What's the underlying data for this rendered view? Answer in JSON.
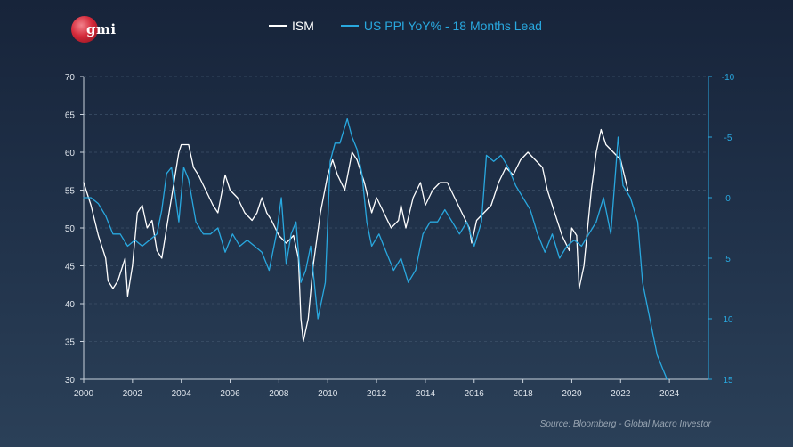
{
  "logo": {
    "text": "gmi"
  },
  "legend": [
    {
      "label": "ISM",
      "color": "#ffffff"
    },
    {
      "label": "US PPI YoY% - 18 Months Lead",
      "color": "#29a8df"
    }
  ],
  "source": "Source: Bloomberg - Global Macro Investor",
  "chart_data": {
    "type": "line",
    "title": "",
    "xlabel": "",
    "ylabel": "",
    "xlim": [
      2000,
      2025.6
    ],
    "x_ticks": [
      "2000",
      "2002",
      "2004",
      "2006",
      "2008",
      "2010",
      "2012",
      "2014",
      "2016",
      "2018",
      "2020",
      "2022",
      "2024"
    ],
    "y_left": {
      "min": 30,
      "max": 70,
      "ticks": [
        "30",
        "35",
        "40",
        "45",
        "50",
        "55",
        "60",
        "65",
        "70"
      ]
    },
    "y_right": {
      "min": -10,
      "max": 15,
      "inverted": true,
      "ticks": [
        "-10",
        "-5",
        "0",
        "5",
        "10",
        "15"
      ]
    },
    "grid": "horizontal dashed",
    "series": [
      {
        "name": "ISM",
        "axis": "left",
        "color": "#ffffff",
        "x": [
          2000.0,
          2000.3,
          2000.6,
          2000.9,
          2001.0,
          2001.2,
          2001.4,
          2001.7,
          2001.8,
          2002.0,
          2002.2,
          2002.4,
          2002.6,
          2002.8,
          2003.0,
          2003.2,
          2003.4,
          2003.6,
          2003.9,
          2004.0,
          2004.3,
          2004.5,
          2004.7,
          2005.0,
          2005.3,
          2005.5,
          2005.8,
          2006.0,
          2006.3,
          2006.6,
          2006.9,
          2007.1,
          2007.3,
          2007.5,
          2007.7,
          2008.0,
          2008.3,
          2008.6,
          2008.8,
          2008.9,
          2009.0,
          2009.2,
          2009.4,
          2009.7,
          2010.0,
          2010.2,
          2010.4,
          2010.7,
          2011.0,
          2011.2,
          2011.5,
          2011.8,
          2012.0,
          2012.3,
          2012.6,
          2012.9,
          2013.0,
          2013.2,
          2013.5,
          2013.8,
          2014.0,
          2014.3,
          2014.6,
          2014.9,
          2015.2,
          2015.5,
          2015.8,
          2015.9,
          2016.1,
          2016.4,
          2016.7,
          2017.0,
          2017.3,
          2017.6,
          2017.9,
          2018.2,
          2018.5,
          2018.8,
          2019.0,
          2019.3,
          2019.6,
          2019.9,
          2020.0,
          2020.2,
          2020.3,
          2020.5,
          2020.8,
          2021.0,
          2021.2,
          2021.4,
          2021.7,
          2022.0,
          2022.3
        ],
        "values": [
          56,
          53,
          49,
          46,
          43,
          42,
          43,
          46,
          41,
          45,
          52,
          53,
          50,
          51,
          47,
          46,
          50,
          54,
          60,
          61,
          61,
          58,
          57,
          55,
          53,
          52,
          57,
          55,
          54,
          52,
          51,
          52,
          54,
          52,
          51,
          49,
          48,
          49,
          46,
          38,
          35,
          38,
          45,
          52,
          57,
          59,
          57,
          55,
          60,
          59,
          56,
          52,
          54,
          52,
          50,
          51,
          53,
          50,
          54,
          56,
          53,
          55,
          56,
          56,
          54,
          52,
          50,
          48,
          51,
          52,
          53,
          56,
          58,
          57,
          59,
          60,
          59,
          58,
          55,
          52,
          49,
          47,
          50,
          49,
          42,
          45,
          55,
          60,
          63,
          61,
          60,
          59,
          55
        ]
      },
      {
        "name": "US PPI YoY% - 18 Months Lead",
        "axis": "right",
        "color": "#29a8df",
        "x": [
          2000.0,
          2000.3,
          2000.6,
          2000.9,
          2001.2,
          2001.5,
          2001.8,
          2002.1,
          2002.4,
          2002.7,
          2003.0,
          2003.2,
          2003.4,
          2003.6,
          2003.9,
          2004.1,
          2004.3,
          2004.6,
          2004.9,
          2005.2,
          2005.5,
          2005.8,
          2006.1,
          2006.4,
          2006.7,
          2007.0,
          2007.3,
          2007.6,
          2007.9,
          2008.1,
          2008.3,
          2008.5,
          2008.7,
          2008.9,
          2009.1,
          2009.3,
          2009.6,
          2009.9,
          2010.1,
          2010.3,
          2010.5,
          2010.8,
          2011.0,
          2011.2,
          2011.4,
          2011.6,
          2011.8,
          2012.1,
          2012.4,
          2012.7,
          2013.0,
          2013.3,
          2013.6,
          2013.9,
          2014.2,
          2014.5,
          2014.8,
          2015.1,
          2015.4,
          2015.7,
          2016.0,
          2016.3,
          2016.5,
          2016.8,
          2017.1,
          2017.4,
          2017.7,
          2018.0,
          2018.3,
          2018.6,
          2018.9,
          2019.2,
          2019.5,
          2019.8,
          2020.1,
          2020.4,
          2020.7,
          2021.0,
          2021.3,
          2021.6,
          2021.9,
          2022.1,
          2022.4,
          2022.7,
          2022.9,
          2023.1,
          2023.3,
          2023.5,
          2023.7,
          2023.9
        ],
        "values": [
          0,
          0,
          0.5,
          1.5,
          3,
          3,
          4,
          3.5,
          4,
          3.5,
          3,
          1,
          -2,
          -2.5,
          2,
          -2.5,
          -1.5,
          2,
          3,
          3,
          2.5,
          4.5,
          3,
          4,
          3.5,
          4,
          4.5,
          6,
          3,
          0,
          5.5,
          3,
          2,
          7,
          6,
          4,
          10,
          7,
          -3,
          -4.5,
          -4.5,
          -6.5,
          -5,
          -4,
          -2,
          2,
          4,
          3,
          4.5,
          6,
          5,
          7,
          6,
          3,
          2,
          2,
          1,
          2,
          3,
          2,
          4,
          2,
          -3.5,
          -3,
          -3.5,
          -2.5,
          -1,
          0,
          1,
          3,
          4.5,
          3,
          5,
          4,
          3.5,
          4,
          3,
          2,
          0,
          3,
          -5,
          -1,
          0,
          2,
          7,
          9,
          11,
          13,
          14,
          15
        ]
      }
    ]
  }
}
